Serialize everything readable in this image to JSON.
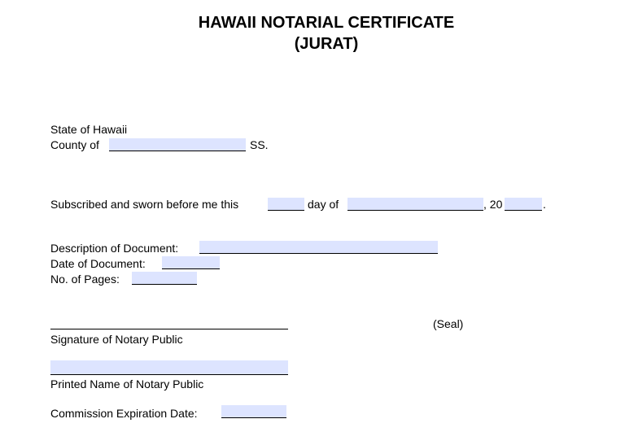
{
  "title": {
    "line1": "HAWAII NOTARIAL CERTIFICATE",
    "line2": "(JURAT)"
  },
  "venue": {
    "state": "State of Hawaii",
    "county_label": "County of",
    "county_value": "",
    "ss": "SS."
  },
  "oath": {
    "prefix": "Subscribed and sworn before me this",
    "day_value": "",
    "day_of": "day of",
    "month_value": "",
    "year_prefix": ", 20",
    "year_value": "",
    "end": "."
  },
  "document": {
    "description_label": "Description of Document:",
    "description_value": "",
    "date_label": "Date of Document:",
    "date_value": "",
    "pages_label": "No. of Pages:",
    "pages_value": ""
  },
  "notary": {
    "seal": "(Seal)",
    "signature_label": "Signature of Notary Public",
    "printed_name_label": "Printed Name of Notary Public",
    "printed_name_value": "",
    "commission_label": "Commission Expiration Date:",
    "commission_value": ""
  },
  "colors": {
    "field_fill": "#dde4ff"
  }
}
